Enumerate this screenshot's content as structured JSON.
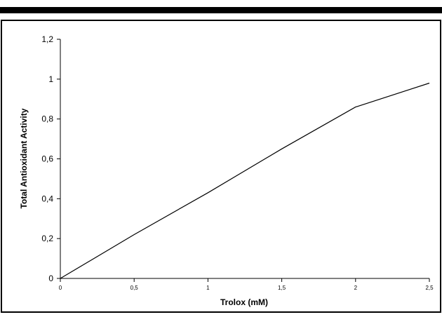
{
  "chart_data": {
    "type": "line",
    "title": "",
    "xlabel": "Trolox (mM)",
    "ylabel": "Total Antioxidant Activity",
    "xlim": [
      0,
      2.5
    ],
    "ylim": [
      0,
      1.2
    ],
    "x_ticks": [
      0,
      0.5,
      1,
      1.5,
      2,
      2.5
    ],
    "y_ticks": [
      0,
      0.2,
      0.4,
      0.6,
      0.8,
      1,
      1.2
    ],
    "x_tick_labels": [
      "0",
      "0,5",
      "1",
      "1,5",
      "2",
      "2,5"
    ],
    "y_tick_labels": [
      "0",
      "0,2",
      "0,4",
      "0,6",
      "0,8",
      "1",
      "1,2"
    ],
    "grid": false,
    "legend": "none",
    "series": [
      {
        "x": [
          0,
          0.5,
          1,
          1.5,
          2,
          2.5
        ],
        "y": [
          0,
          0.22,
          0.43,
          0.65,
          0.86,
          0.98
        ],
        "color": "#000000"
      }
    ]
  }
}
